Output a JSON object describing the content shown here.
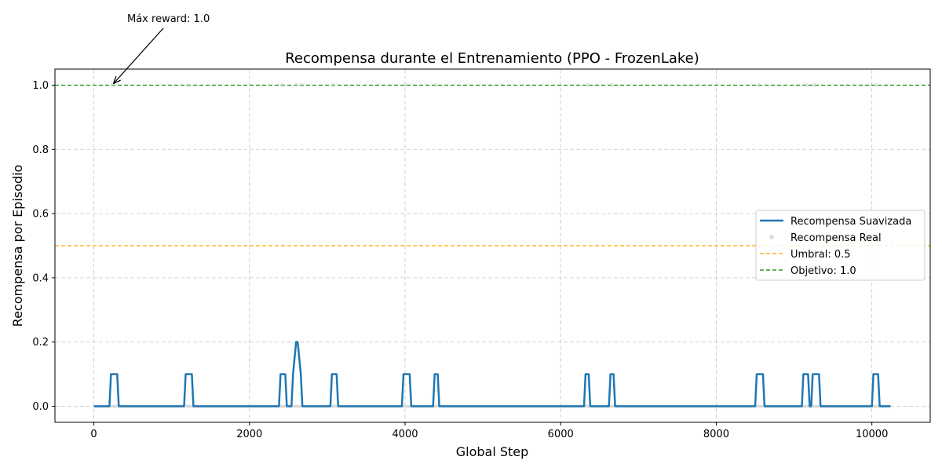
{
  "chart_data": {
    "type": "line",
    "title": "Recompensa durante el Entrenamiento (PPO - FrozenLake)",
    "xlabel": "Global Step",
    "ylabel": "Recompensa por Episodio",
    "xlim": [
      -500,
      10750
    ],
    "ylim": [
      -0.05,
      1.05
    ],
    "x_ticks": [
      0,
      2000,
      4000,
      6000,
      8000,
      10000
    ],
    "y_ticks": [
      0.0,
      0.2,
      0.4,
      0.6,
      0.8,
      1.0
    ],
    "x_tick_labels": [
      "0",
      "2000",
      "4000",
      "6000",
      "8000",
      "10000"
    ],
    "y_tick_labels": [
      "0.0",
      "0.2",
      "0.4",
      "0.6",
      "0.8",
      "1.0"
    ],
    "grid": true,
    "legend_position": "center-right",
    "series": [
      {
        "name": "Recompensa Suavizada",
        "kind": "line",
        "color": "#1f77b4",
        "x": [
          0,
          200,
          220,
          300,
          320,
          1160,
          1180,
          1260,
          1280,
          2380,
          2400,
          2460,
          2480,
          2540,
          2560,
          2600,
          2620,
          2660,
          2680,
          3040,
          3060,
          3120,
          3140,
          3960,
          3980,
          4060,
          4080,
          4360,
          4380,
          4420,
          4440,
          6300,
          6320,
          6360,
          6380,
          6620,
          6640,
          6680,
          6700,
          8500,
          8520,
          8600,
          8620,
          9100,
          9120,
          9180,
          9200,
          9220,
          9240,
          9320,
          9340,
          10000,
          10020,
          10080,
          10100,
          10240
        ],
        "y": [
          0.0,
          0.0,
          0.1,
          0.1,
          0.0,
          0.0,
          0.1,
          0.1,
          0.0,
          0.0,
          0.1,
          0.1,
          0.0,
          0.0,
          0.1,
          0.2,
          0.2,
          0.1,
          0.0,
          0.0,
          0.1,
          0.1,
          0.0,
          0.0,
          0.1,
          0.1,
          0.0,
          0.0,
          0.1,
          0.1,
          0.0,
          0.0,
          0.1,
          0.1,
          0.0,
          0.0,
          0.1,
          0.1,
          0.0,
          0.0,
          0.1,
          0.1,
          0.0,
          0.0,
          0.1,
          0.1,
          0.0,
          0.0,
          0.1,
          0.1,
          0.0,
          0.0,
          0.1,
          0.1,
          0.0,
          0.0
        ]
      },
      {
        "name": "Recompensa Real",
        "kind": "scatter",
        "color": "#cccccc",
        "x": [
          240,
          1200,
          2420,
          2600,
          2660,
          3080,
          4000,
          4400,
          6340,
          6660,
          8540,
          9160,
          9260,
          10060
        ],
        "y": [
          1.0,
          1.0,
          1.0,
          1.0,
          1.0,
          1.0,
          1.0,
          1.0,
          1.0,
          1.0,
          1.0,
          1.0,
          1.0,
          1.0
        ]
      },
      {
        "name": "Umbral: 0.5",
        "kind": "hline",
        "color": "#ffa500",
        "y": 0.5
      },
      {
        "name": "Objetivo: 1.0",
        "kind": "hline",
        "color": "#008000",
        "y": 1.0
      }
    ],
    "annotation": {
      "text": "Máx reward: 1.0",
      "x": 240,
      "y": 1.0
    }
  }
}
